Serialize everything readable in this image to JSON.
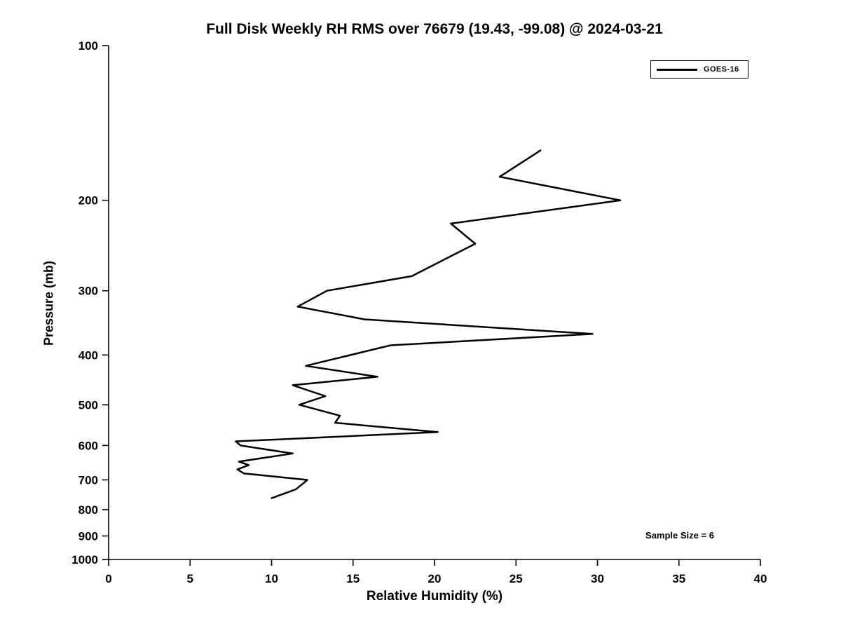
{
  "chart_data": {
    "type": "line",
    "title": "Full Disk Weekly RH RMS over 76679 (19.43, -99.08) @ 2024-03-21",
    "xlabel": "Relative Humidity (%)",
    "ylabel": "Pressure (mb)",
    "xlim": [
      0,
      40
    ],
    "ylim": [
      100,
      1000
    ],
    "yscale": "log",
    "y_inverted": true,
    "grid": false,
    "xticks": [
      0,
      5,
      10,
      15,
      20,
      25,
      30,
      35,
      40
    ],
    "yticks": [
      100,
      200,
      300,
      400,
      500,
      600,
      700,
      800,
      900,
      1000
    ],
    "legend": {
      "position": "top-right",
      "entries": [
        "GOES-16"
      ]
    },
    "annotation": "Sample Size = 6",
    "line_color": "#000000",
    "series": [
      {
        "name": "GOES-16",
        "points_rh_pressure": [
          [
            26.5,
            160
          ],
          [
            24.0,
            180
          ],
          [
            31.4,
            200
          ],
          [
            21.0,
            222
          ],
          [
            22.5,
            243
          ],
          [
            18.6,
            281
          ],
          [
            13.4,
            300
          ],
          [
            11.6,
            322
          ],
          [
            15.7,
            341
          ],
          [
            29.7,
            364
          ],
          [
            17.3,
            383
          ],
          [
            12.1,
            420
          ],
          [
            16.5,
            441
          ],
          [
            11.3,
            458
          ],
          [
            13.3,
            481
          ],
          [
            11.7,
            500
          ],
          [
            14.2,
            525
          ],
          [
            13.9,
            542
          ],
          [
            20.2,
            565
          ],
          [
            7.8,
            589
          ],
          [
            8.1,
            600
          ],
          [
            11.3,
            622
          ],
          [
            8.0,
            645
          ],
          [
            8.6,
            655
          ],
          [
            7.9,
            668
          ],
          [
            8.3,
            680
          ],
          [
            12.2,
            700
          ],
          [
            11.5,
            730
          ],
          [
            10.0,
            760
          ]
        ]
      }
    ]
  }
}
